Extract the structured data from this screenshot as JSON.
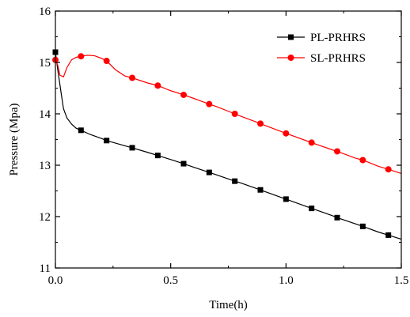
{
  "chart_data": {
    "type": "line",
    "title": "",
    "xlabel": "Time(h)",
    "ylabel": "Pressure (Mpa)",
    "xlim": [
      0,
      1.5
    ],
    "ylim": [
      11,
      16
    ],
    "xticks": [
      0.0,
      0.5,
      1.0,
      1.5
    ],
    "xtick_labels": [
      "0.0",
      "0.5",
      "1.0",
      "1.5"
    ],
    "yticks": [
      11,
      12,
      13,
      14,
      15,
      16
    ],
    "ytick_labels": [
      "11",
      "12",
      "13",
      "14",
      "15",
      "16"
    ],
    "grid": false,
    "legend_position": "top-right",
    "series": [
      {
        "name": "PL-PRHRS",
        "color": "#000000",
        "marker": "square",
        "x": [
          0,
          0.012,
          0.025,
          0.035,
          0.05,
          0.07,
          0.09,
          0.111,
          0.15,
          0.2,
          0.222,
          0.3,
          0.333,
          0.4,
          0.444,
          0.5,
          0.556,
          0.6,
          0.667,
          0.7,
          0.778,
          0.8,
          0.889,
          0.9,
          1.0,
          1.111,
          1.2,
          1.222,
          1.3,
          1.333,
          1.4,
          1.444,
          1.5
        ],
        "y": [
          15.2,
          14.8,
          14.4,
          14.1,
          13.92,
          13.8,
          13.72,
          13.68,
          13.6,
          13.52,
          13.48,
          13.38,
          13.34,
          13.25,
          13.19,
          13.11,
          13.03,
          12.96,
          12.86,
          12.81,
          12.69,
          12.66,
          12.52,
          12.5,
          12.34,
          12.16,
          12.02,
          11.98,
          11.86,
          11.81,
          11.7,
          11.64,
          11.56
        ],
        "marker_x": [
          0,
          0.111,
          0.222,
          0.333,
          0.444,
          0.556,
          0.667,
          0.778,
          0.889,
          1.0,
          1.111,
          1.222,
          1.333,
          1.444
        ],
        "marker_y": [
          15.2,
          13.68,
          13.48,
          13.34,
          13.19,
          13.03,
          12.86,
          12.69,
          12.52,
          12.34,
          12.16,
          11.98,
          11.81,
          11.64
        ]
      },
      {
        "name": "SL-PRHRS",
        "color": "#ff0000",
        "marker": "circle",
        "x": [
          0,
          0.01,
          0.02,
          0.035,
          0.05,
          0.07,
          0.09,
          0.111,
          0.14,
          0.17,
          0.2,
          0.222,
          0.26,
          0.3,
          0.333,
          0.4,
          0.444,
          0.5,
          0.556,
          0.6,
          0.667,
          0.7,
          0.778,
          0.8,
          0.889,
          0.9,
          1.0,
          1.111,
          1.2,
          1.222,
          1.3,
          1.333,
          1.4,
          1.444,
          1.5
        ],
        "y": [
          15.05,
          14.95,
          14.75,
          14.72,
          14.9,
          15.05,
          15.1,
          15.12,
          15.14,
          15.13,
          15.08,
          15.03,
          14.86,
          14.74,
          14.7,
          14.6,
          14.55,
          14.45,
          14.37,
          14.3,
          14.19,
          14.14,
          14.0,
          13.96,
          13.81,
          13.79,
          13.62,
          13.44,
          13.3,
          13.27,
          13.14,
          13.1,
          12.98,
          12.92,
          12.84
        ],
        "marker_x": [
          0,
          0.111,
          0.222,
          0.333,
          0.444,
          0.556,
          0.667,
          0.778,
          0.889,
          1.0,
          1.111,
          1.222,
          1.333,
          1.444
        ],
        "marker_y": [
          15.05,
          15.12,
          15.03,
          14.7,
          14.55,
          14.37,
          14.19,
          14.0,
          13.81,
          13.62,
          13.44,
          13.27,
          13.1,
          12.92
        ]
      }
    ]
  }
}
